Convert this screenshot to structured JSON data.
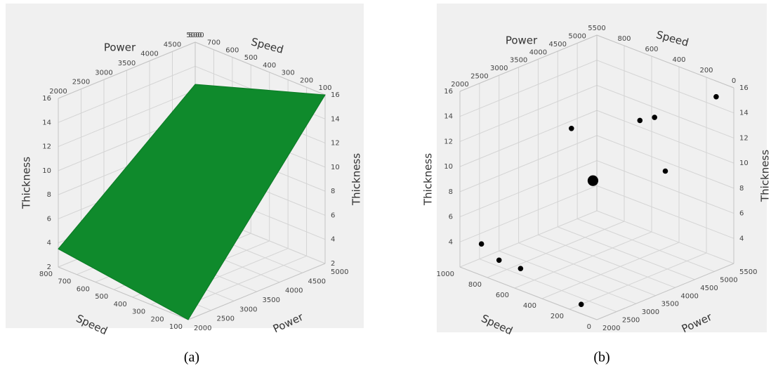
{
  "chart_data": [
    {
      "type": "surface",
      "caption": "(a)",
      "xlabel": "Power",
      "ylabel": "Speed",
      "zlabel": "Thickness",
      "xlim": [
        2000,
        5000
      ],
      "ylim": [
        100,
        800
      ],
      "zlim": [
        2,
        16
      ],
      "xticks": [
        2000,
        2500,
        3000,
        3500,
        4000,
        4500,
        5000
      ],
      "yticks": [
        100,
        200,
        300,
        400,
        500,
        600,
        700,
        800
      ],
      "zticks": [
        2,
        4,
        6,
        8,
        10,
        12,
        14,
        16
      ],
      "grid": true,
      "color": "#0f8a2c",
      "x": [
        2000,
        5000
      ],
      "y": [
        800,
        100
      ],
      "z": [
        [
          3.5,
          2
        ],
        [
          12.5,
          16
        ]
      ]
    },
    {
      "type": "scatter3d",
      "caption": "(b)",
      "xlabel": "Power",
      "ylabel": "Speed",
      "zlabel": "Thickness",
      "xlim": [
        2000,
        5500
      ],
      "ylim": [
        0,
        1000
      ],
      "zlim": [
        2,
        16
      ],
      "xticks": [
        2000,
        2500,
        3000,
        3500,
        4000,
        4500,
        5000,
        5500
      ],
      "yticks": [
        0,
        200,
        400,
        600,
        800,
        1000
      ],
      "zticks": [
        4,
        6,
        8,
        10,
        12,
        14,
        16
      ],
      "grid": true,
      "color": "#000000",
      "x": [
        5400,
        4500,
        4700,
        3800,
        4000,
        4800,
        2200,
        2300,
        2500,
        2300
      ],
      "y": [
        100,
        400,
        350,
        700,
        600,
        300,
        900,
        800,
        700,
        200
      ],
      "z": [
        15,
        13,
        13.2,
        12,
        8,
        9,
        4,
        3,
        2.5,
        2
      ],
      "sizes": [
        1,
        1,
        1,
        1,
        2,
        1,
        1,
        1,
        1,
        1
      ]
    }
  ]
}
